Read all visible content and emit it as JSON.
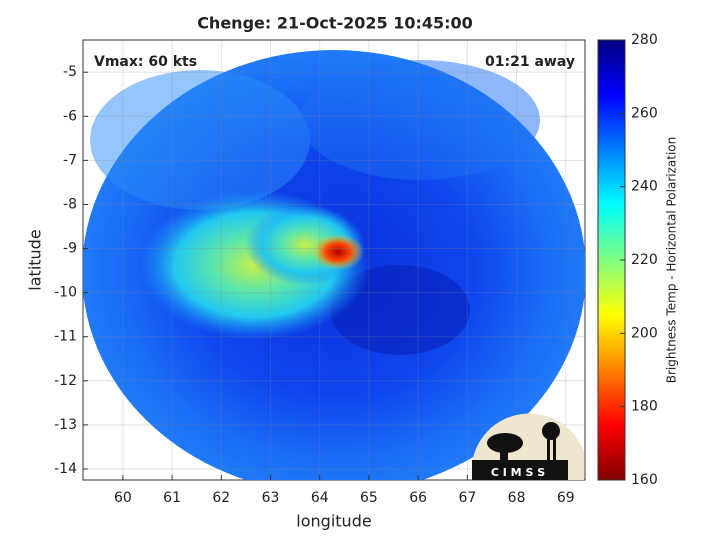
{
  "chart_data": {
    "type": "image",
    "title": "Chenge: 21-Oct-2025 10:45:00",
    "annotations": [
      "Vmax: 60 kts",
      "01:21 away"
    ],
    "xlabel": "longitude",
    "ylabel": "latitude",
    "xlim": [
      59.19,
      69.39
    ],
    "xticks": [
      60,
      61,
      62,
      63,
      64,
      65,
      66,
      67,
      68,
      69
    ],
    "ylim": [
      -14.25,
      -4.27
    ],
    "yticks": [
      -14,
      -13,
      -12,
      -11,
      -10,
      -9,
      -8,
      -7,
      -6,
      -5
    ],
    "grid": true,
    "colorbar": {
      "label": "Brightness Temp - Horizontal Polarization",
      "colormap": "jet",
      "clim": [
        160,
        280
      ],
      "ticks": [
        160,
        180,
        200,
        220,
        240,
        260,
        280
      ]
    },
    "logo_text": "C I M S S"
  }
}
